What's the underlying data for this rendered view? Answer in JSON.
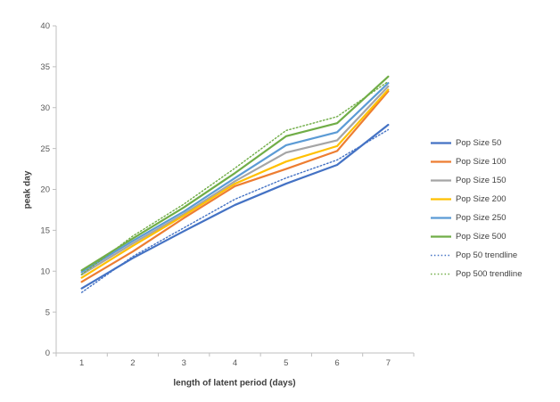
{
  "colors": {
    "background": "#FFFFFF",
    "axis": "#BFBFBF",
    "tick_text": "#595959",
    "title_text": "#404040"
  },
  "chart_data": {
    "type": "line",
    "title": "",
    "xlabel": "length of latent period (days)",
    "ylabel": "peak day",
    "x": [
      1,
      2,
      3,
      4,
      5,
      6,
      7
    ],
    "x_tick_labels": [
      "1",
      "2",
      "3",
      "4",
      "5",
      "6",
      "7"
    ],
    "y_ticks": [
      0,
      5,
      10,
      15,
      20,
      25,
      30,
      35,
      40
    ],
    "y_tick_labels": [
      "0",
      "5",
      "10",
      "15",
      "20",
      "25",
      "30",
      "35",
      "40"
    ],
    "ylim": [
      0,
      40
    ],
    "grid": false,
    "legend_position": "right",
    "series": [
      {
        "name": "Pop Size 50",
        "color": "#4472C4",
        "style": "solid",
        "values": [
          7.9,
          11.6,
          14.9,
          18.1,
          20.7,
          23.0,
          27.9
        ]
      },
      {
        "name": "Pop Size 100",
        "color": "#ED7D31",
        "style": "solid",
        "values": [
          8.7,
          12.4,
          16.5,
          20.4,
          22.5,
          24.7,
          32.0
        ]
      },
      {
        "name": "Pop Size 150",
        "color": "#A5A5A5",
        "style": "solid",
        "values": [
          9.6,
          13.4,
          17.0,
          21.0,
          24.5,
          26.0,
          32.6
        ]
      },
      {
        "name": "Pop Size 200",
        "color": "#FFC000",
        "style": "solid",
        "values": [
          9.2,
          13.1,
          16.8,
          20.7,
          23.4,
          25.3,
          32.2
        ]
      },
      {
        "name": "Pop Size 250",
        "color": "#5B9BD5",
        "style": "solid",
        "values": [
          9.9,
          13.7,
          17.3,
          21.4,
          25.4,
          27.0,
          33.0
        ]
      },
      {
        "name": "Pop Size 500",
        "color": "#70AD47",
        "style": "solid",
        "values": [
          10.1,
          14.0,
          17.8,
          22.0,
          26.5,
          28.1,
          33.8
        ]
      },
      {
        "name": "Pop 50 trendline",
        "color": "#4472C4",
        "style": "dotted",
        "values": [
          7.4,
          11.8,
          15.3,
          18.8,
          21.4,
          23.6,
          27.3
        ]
      },
      {
        "name": "Pop 500 trendline",
        "color": "#70AD47",
        "style": "dotted",
        "values": [
          9.6,
          14.3,
          18.2,
          22.6,
          27.2,
          28.9,
          33.2
        ]
      }
    ]
  }
}
